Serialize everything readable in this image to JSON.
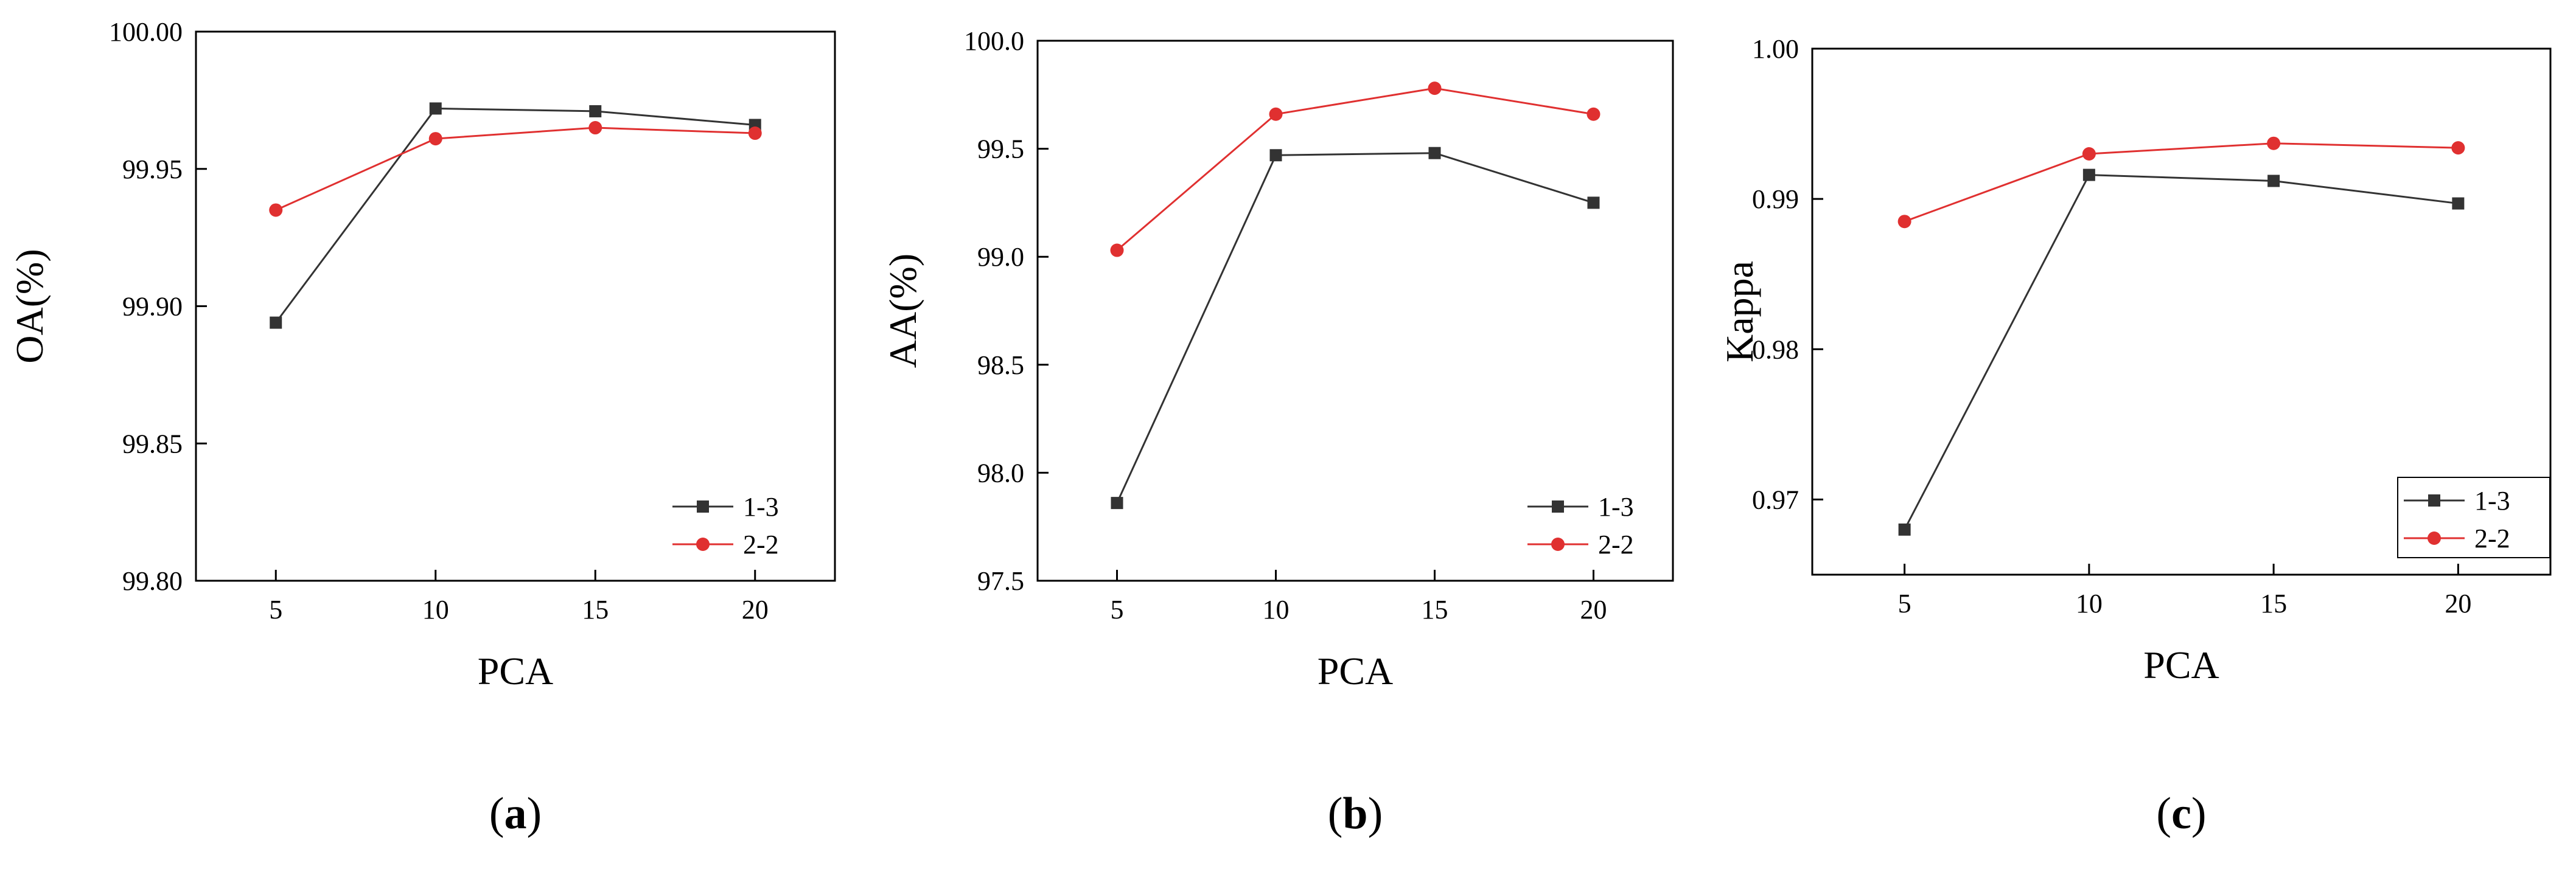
{
  "chart_data": [
    {
      "type": "line",
      "panel": "a",
      "panel_label": "a",
      "title": "",
      "xlabel": "PCA",
      "ylabel": "OA(%)",
      "x": [
        5,
        10,
        15,
        20
      ],
      "x_ticks": [
        "5",
        "10",
        "15",
        "20"
      ],
      "xlim": [
        2.5,
        22.5
      ],
      "ylim": [
        99.8,
        100.0
      ],
      "y_ticks": [
        "99.80",
        "99.85",
        "99.90",
        "99.95",
        "100.00"
      ],
      "y_tick_values": [
        99.8,
        99.85,
        99.9,
        99.95,
        100.0
      ],
      "grid": false,
      "legend_position": "bottom-right",
      "series": [
        {
          "name": "1-3",
          "color": "#333333",
          "marker": "square",
          "values": [
            99.894,
            99.972,
            99.971,
            99.966
          ]
        },
        {
          "name": "2-2",
          "color": "#e03030",
          "marker": "circle",
          "values": [
            99.935,
            99.961,
            99.965,
            99.963
          ]
        }
      ]
    },
    {
      "type": "line",
      "panel": "b",
      "panel_label": "b",
      "title": "",
      "xlabel": "PCA",
      "ylabel": "AA(%)",
      "x": [
        5,
        10,
        15,
        20
      ],
      "x_ticks": [
        "5",
        "10",
        "15",
        "20"
      ],
      "xlim": [
        2.5,
        22.5
      ],
      "ylim": [
        97.5,
        100.0
      ],
      "y_ticks": [
        "97.5",
        "98.0",
        "98.5",
        "99.0",
        "99.5",
        "100.0"
      ],
      "y_tick_values": [
        97.5,
        98.0,
        98.5,
        99.0,
        99.5,
        100.0
      ],
      "grid": false,
      "legend_position": "bottom-right",
      "series": [
        {
          "name": "1-3",
          "color": "#333333",
          "marker": "square",
          "values": [
            97.86,
            99.47,
            99.48,
            99.25
          ]
        },
        {
          "name": "2-2",
          "color": "#e03030",
          "marker": "circle",
          "values": [
            99.03,
            99.66,
            99.78,
            99.66
          ]
        }
      ]
    },
    {
      "type": "line",
      "panel": "c",
      "panel_label": "c",
      "title": "",
      "xlabel": "PCA",
      "ylabel": "Kappa",
      "x": [
        5,
        10,
        15,
        20
      ],
      "x_ticks": [
        "5",
        "10",
        "15",
        "20"
      ],
      "xlim": [
        2.5,
        22.5
      ],
      "ylim": [
        0.965,
        1.0
      ],
      "y_ticks": [
        "0.97",
        "0.98",
        "0.99",
        "1.00"
      ],
      "y_tick_values": [
        0.97,
        0.98,
        0.99,
        1.0
      ],
      "grid": false,
      "legend_position": "bottom-right",
      "series": [
        {
          "name": "1-3",
          "color": "#333333",
          "marker": "square",
          "values": [
            0.968,
            0.9916,
            0.9912,
            0.9897
          ]
        },
        {
          "name": "2-2",
          "color": "#e03030",
          "marker": "circle",
          "values": [
            0.9885,
            0.993,
            0.9937,
            0.9934
          ]
        }
      ]
    }
  ]
}
